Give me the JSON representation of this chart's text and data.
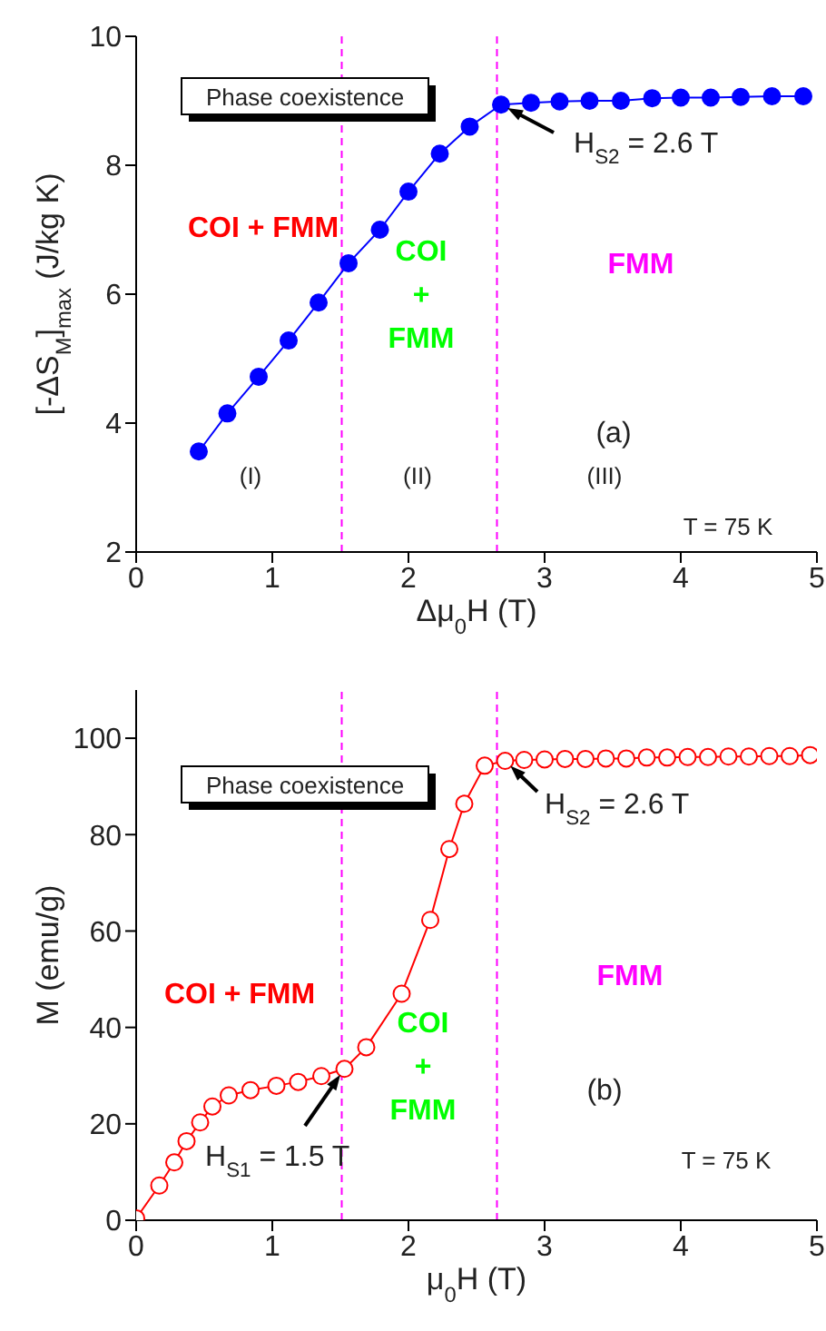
{
  "chart_data": [
    {
      "type": "line",
      "xlabel": "Δμ$_{0}$H (T)",
      "ylabel": "[-ΔS$_{M}$]$_{max}$ (J/kg K)",
      "xlim": [
        0,
        5
      ],
      "xticks": [
        0,
        1,
        2,
        3,
        4,
        5
      ],
      "ylim": [
        2,
        10
      ],
      "yticks": [
        2,
        4,
        6,
        8,
        10
      ],
      "marker": "circle",
      "line_style": "solid",
      "series": [
        {
          "color": "#0000ff",
          "x": [
            0.46,
            0.67,
            0.9,
            1.12,
            1.34,
            1.56,
            1.79,
            2.0,
            2.23,
            2.45,
            2.68,
            2.9,
            3.11,
            3.33,
            3.56,
            3.79,
            4.0,
            4.22,
            4.44,
            4.67,
            4.9
          ],
          "values": [
            3.56,
            4.15,
            4.72,
            5.28,
            5.87,
            6.48,
            7.0,
            7.59,
            8.18,
            8.6,
            8.94,
            8.97,
            8.99,
            9.0,
            9.0,
            9.04,
            9.05,
            9.05,
            9.06,
            9.07,
            9.07
          ]
        }
      ],
      "ref_lines": [
        {
          "axis": "x",
          "value": 1.51,
          "color": "#ff00ff",
          "line_style": "dashed"
        },
        {
          "axis": "x",
          "value": 2.65,
          "color": "#ff00ff",
          "line_style": "dashed"
        }
      ],
      "annotations": [
        "Phase coexistence",
        {
          "text": "H$_{S2}$ = 2.6 T",
          "x": 2.68,
          "y": 8.94
        },
        "COI + FMM",
        "COI\n+\nFMM",
        "FMM",
        "(a)",
        "(I)",
        "(II)",
        "(III)",
        "T = 75 K"
      ]
    },
    {
      "type": "line",
      "xlabel": "μ$_{0}$H (T)",
      "ylabel": "M (emu/g)",
      "xlim": [
        0,
        5
      ],
      "xticks": [
        0,
        1,
        2,
        3,
        4,
        5
      ],
      "ylim": [
        0,
        110
      ],
      "yticks": [
        0,
        20,
        40,
        60,
        80,
        100
      ],
      "marker": "circle",
      "line_style": "solid",
      "series": [
        {
          "color": "#ff0000",
          "x": [
            0,
            0.17,
            0.28,
            0.37,
            0.47,
            0.56,
            0.68,
            0.84,
            1.03,
            1.19,
            1.36,
            1.53,
            1.69,
            1.95,
            2.16,
            2.3,
            2.41,
            2.56,
            2.71,
            2.85,
            3.0,
            3.15,
            3.3,
            3.45,
            3.6,
            3.75,
            3.9,
            4.05,
            4.2,
            4.35,
            4.5,
            4.65,
            4.8,
            4.95
          ],
          "values": [
            0.4,
            7.2,
            12,
            16.4,
            20.3,
            23.6,
            25.9,
            27,
            27.9,
            28.7,
            29.9,
            31.4,
            35.9,
            47,
            62.3,
            77,
            86.4,
            94.3,
            95.3,
            95.5,
            95.6,
            95.7,
            95.7,
            95.8,
            95.8,
            96,
            96,
            96.1,
            96.1,
            96.2,
            96.2,
            96.3,
            96.3,
            96.5
          ]
        }
      ],
      "ref_lines": [
        {
          "axis": "x",
          "value": 1.51,
          "color": "#ff00ff",
          "line_style": "dashed"
        },
        {
          "axis": "x",
          "value": 2.65,
          "color": "#ff00ff",
          "line_style": "dashed"
        }
      ],
      "annotations": [
        "Phase coexistence",
        {
          "text": "H$_{S2}$ = 2.6 T",
          "x": 2.71,
          "y": 95.3
        },
        {
          "text": "H$_{S1}$ = 1.5 T",
          "x": 1.53,
          "y": 31.4
        },
        "COI + FMM",
        "COI\n+\nFMM",
        "FMM",
        "(b)",
        "T = 75 K"
      ]
    }
  ]
}
